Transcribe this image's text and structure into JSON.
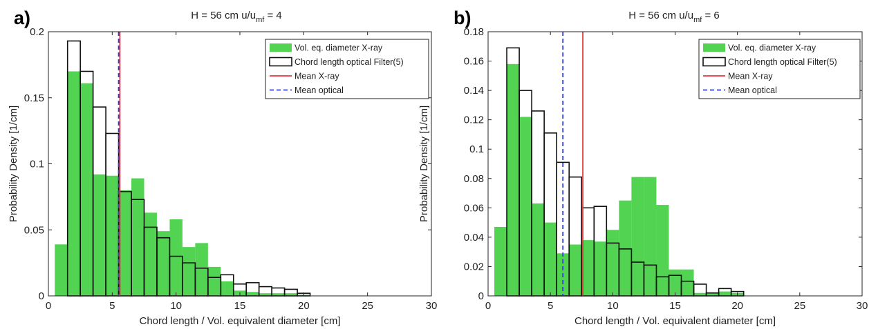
{
  "colors": {
    "xray": "#52d352",
    "optical_edge": "#111111",
    "mean_xray": "#e8353b",
    "mean_optical": "#2b3fd6",
    "axis": "#222222"
  },
  "chart_data": [
    {
      "type": "bar",
      "panel_label": "a)",
      "title_main": "H = 56 cm u/u",
      "title_sub": "mf",
      "title_tail": " = 4",
      "xlabel": "Chord length / Vol. equivalent diameter [cm]",
      "ylabel": "Probability Density [1/cm]",
      "xlim": [
        0,
        30
      ],
      "ylim": [
        0,
        0.2
      ],
      "xticks": [
        "0",
        "5",
        "10",
        "15",
        "20",
        "25",
        "30"
      ],
      "xtick_values": [
        0,
        5,
        10,
        15,
        20,
        25,
        30
      ],
      "yticks": [
        "0",
        "0.05",
        "0.1",
        "0.15",
        "0.2"
      ],
      "ytick_values": [
        0,
        0.05,
        0.1,
        0.15,
        0.2
      ],
      "bin_width": 1.0,
      "series": [
        {
          "name": "Vol. eq. diameter X-ray",
          "style": "filled",
          "bin_starts": [
            0.5,
            1.5,
            2.5,
            3.5,
            4.5,
            5.5,
            6.5,
            7.5,
            8.5,
            9.5,
            10.5,
            11.5,
            12.5,
            13.5,
            14.5,
            15.5,
            16.5,
            17.5,
            18.5,
            19.5
          ],
          "values": [
            0.039,
            0.17,
            0.161,
            0.092,
            0.091,
            0.08,
            0.089,
            0.063,
            0.049,
            0.058,
            0.037,
            0.04,
            0.022,
            0.011,
            0.004,
            0.003,
            0.002,
            0.002,
            0.002,
            0.001
          ]
        },
        {
          "name": "Chord length optical Filter(5)",
          "style": "outline",
          "bin_starts": [
            1.5,
            2.5,
            3.5,
            4.5,
            5.5,
            6.5,
            7.5,
            8.5,
            9.5,
            10.5,
            11.5,
            12.5,
            13.5,
            14.5,
            15.5,
            16.5,
            17.5,
            18.5,
            19.5
          ],
          "values": [
            0.193,
            0.17,
            0.143,
            0.123,
            0.079,
            0.073,
            0.052,
            0.044,
            0.03,
            0.025,
            0.021,
            0.014,
            0.016,
            0.009,
            0.01,
            0.007,
            0.006,
            0.005,
            0.002
          ]
        }
      ],
      "mean_lines": [
        {
          "name": "Mean X-ray",
          "x": 5.6,
          "style": "solid"
        },
        {
          "name": "Mean optical",
          "x": 5.5,
          "style": "dashed"
        }
      ],
      "legend": {
        "position": "top-right",
        "entries": [
          "Vol. eq. diameter X-ray",
          "Chord length optical Filter(5)",
          "Mean X-ray",
          "Mean optical"
        ]
      },
      "grid": false
    },
    {
      "type": "bar",
      "panel_label": "b)",
      "title_main": "H = 56 cm u/u",
      "title_sub": "mf",
      "title_tail": " = 6",
      "xlabel": "Chord length / Vol. equivalent diameter [cm]",
      "ylabel": "Probability Density [1/cm]",
      "xlim": [
        0,
        30
      ],
      "ylim": [
        0,
        0.18
      ],
      "xticks": [
        "0",
        "5",
        "10",
        "15",
        "20",
        "25",
        "30"
      ],
      "xtick_values": [
        0,
        5,
        10,
        15,
        20,
        25,
        30
      ],
      "yticks": [
        "0",
        "0.02",
        "0.04",
        "0.06",
        "0.08",
        "0.1",
        "0.12",
        "0.14",
        "0.16",
        "0.18"
      ],
      "ytick_values": [
        0,
        0.02,
        0.04,
        0.06,
        0.08,
        0.1,
        0.12,
        0.14,
        0.16,
        0.18
      ],
      "bin_width": 1.0,
      "series": [
        {
          "name": "Vol. eq. diameter X-ray",
          "style": "filled",
          "bin_starts": [
            0.5,
            1.5,
            2.5,
            3.5,
            4.5,
            5.5,
            6.5,
            7.5,
            8.5,
            9.5,
            10.5,
            11.5,
            12.5,
            13.5,
            14.5,
            15.5,
            16.5,
            17.5,
            18.5,
            19.5
          ],
          "values": [
            0.047,
            0.158,
            0.122,
            0.063,
            0.05,
            0.029,
            0.035,
            0.038,
            0.037,
            0.045,
            0.065,
            0.081,
            0.081,
            0.062,
            0.018,
            0.018,
            0.002,
            0.002,
            0.003,
            0.002
          ]
        },
        {
          "name": "Chord length optical Filter(5)",
          "style": "outline",
          "bin_starts": [
            1.5,
            2.5,
            3.5,
            4.5,
            5.5,
            6.5,
            7.5,
            8.5,
            9.5,
            10.5,
            11.5,
            12.5,
            13.5,
            14.5,
            15.5,
            16.5,
            17.5,
            18.5,
            19.5
          ],
          "values": [
            0.169,
            0.14,
            0.126,
            0.111,
            0.091,
            0.081,
            0.06,
            0.061,
            0.036,
            0.032,
            0.023,
            0.021,
            0.013,
            0.014,
            0.01,
            0.008,
            0.002,
            0.005,
            0.003
          ]
        }
      ],
      "mean_lines": [
        {
          "name": "Mean X-ray",
          "x": 7.6,
          "style": "solid"
        },
        {
          "name": "Mean optical",
          "x": 6.0,
          "style": "dashed"
        }
      ],
      "legend": {
        "position": "top-right",
        "entries": [
          "Vol. eq. diameter X-ray",
          "Chord length optical Filter(5)",
          "Mean X-ray",
          "Mean optical"
        ]
      },
      "grid": false
    }
  ]
}
